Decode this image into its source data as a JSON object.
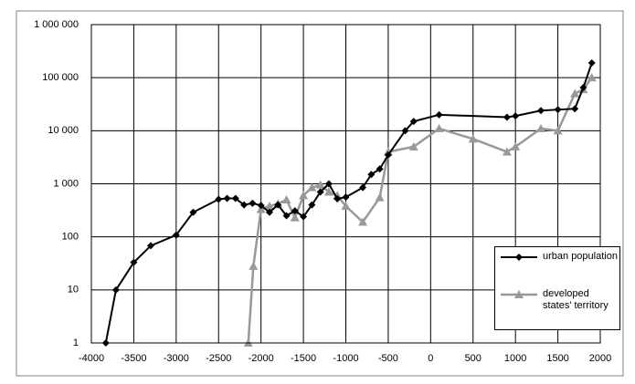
{
  "chart_data": {
    "type": "line",
    "log_y": true,
    "grid": true,
    "legend": "bottom-right",
    "xlim": [
      -4000,
      2000
    ],
    "xticks": [
      -4000,
      -3500,
      -3000,
      -2500,
      -2000,
      -1500,
      -1000,
      -500,
      0,
      500,
      1000,
      1500,
      2000
    ],
    "ylim": [
      1,
      1000000
    ],
    "yticks": [
      1,
      10,
      100,
      {
        "value": 1000,
        "label": "1 000"
      },
      {
        "value": 10000,
        "label": "10 000"
      },
      {
        "value": 100000,
        "label": "100 000"
      },
      {
        "value": 1000000,
        "label": "1 000 000"
      }
    ],
    "series": [
      {
        "name": "urban population",
        "color": "#000000",
        "marker": "diamond",
        "x": [
          -3830,
          -3710,
          -3500,
          -3300,
          -3000,
          -2800,
          -2500,
          -2400,
          -2300,
          -2200,
          -2100,
          -2000,
          -1900,
          -1800,
          -1700,
          -1600,
          -1500,
          -1400,
          -1300,
          -1200,
          -1100,
          -1000,
          -800,
          -700,
          -600,
          -500,
          -300,
          -200,
          100,
          900,
          1000,
          1300,
          1500,
          1700,
          1800,
          1900
        ],
        "values": [
          1,
          10,
          33,
          68,
          108,
          290,
          510,
          530,
          530,
          400,
          430,
          390,
          290,
          400,
          250,
          310,
          240,
          400,
          700,
          1000,
          520,
          560,
          850,
          1500,
          1900,
          3500,
          10000,
          15000,
          20000,
          18000,
          19000,
          24000,
          25000,
          26000,
          65000,
          190000
        ]
      },
      {
        "name": "developed states' territory",
        "color": "#999999",
        "marker": "triangle",
        "x": [
          -2150,
          -2090,
          -2000,
          -1900,
          -1800,
          -1700,
          -1600,
          -1500,
          -1400,
          -1300,
          -1200,
          -1100,
          -1000,
          -800,
          -600,
          -500,
          -200,
          100,
          500,
          900,
          1000,
          1300,
          1500,
          1700,
          1800,
          1900
        ],
        "values": [
          1,
          28,
          330,
          380,
          420,
          500,
          230,
          600,
          850,
          950,
          700,
          600,
          380,
          190,
          550,
          4000,
          5000,
          11000,
          7000,
          4000,
          5000,
          11000,
          10000,
          50000,
          60000,
          100000
        ]
      }
    ]
  }
}
